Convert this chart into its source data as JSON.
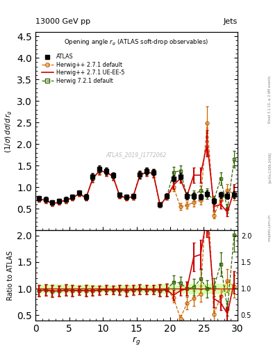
{
  "title_top": "13000 GeV pp",
  "title_right": "Jets",
  "plot_title": "Opening angle $r_g$ (ATLAS soft-drop observables)",
  "ylabel_main": "$(1/\\sigma)\\,d\\sigma/d\\,r_g$",
  "ylabel_ratio": "Ratio to ATLAS",
  "xlabel": "$r_g$",
  "watermark": "ATLAS_2019_I1772062",
  "rivet_label": "Rivet 3.1.10, ≥ 2.9M events",
  "arxiv_label": "[arXiv:1306.3436]",
  "mcplots_label": "mcplots.cern.ch",
  "x": [
    0.5,
    1.5,
    2.5,
    3.5,
    4.5,
    5.5,
    6.5,
    7.5,
    8.5,
    9.5,
    10.5,
    11.5,
    12.5,
    13.5,
    14.5,
    15.5,
    16.5,
    17.5,
    18.5,
    19.5,
    20.5,
    21.5,
    22.5,
    23.5,
    24.5,
    25.5,
    26.5,
    27.5,
    28.5,
    29.5
  ],
  "atlas_y": [
    0.75,
    0.72,
    0.65,
    0.68,
    0.72,
    0.78,
    0.88,
    0.78,
    1.25,
    1.42,
    1.38,
    1.28,
    0.82,
    0.78,
    0.8,
    1.3,
    1.38,
    1.35,
    0.6,
    0.8,
    1.2,
    1.25,
    0.8,
    0.8,
    0.78,
    0.85,
    0.68,
    0.82,
    0.8,
    0.82
  ],
  "atlas_yerr": [
    0.05,
    0.05,
    0.05,
    0.05,
    0.05,
    0.05,
    0.05,
    0.06,
    0.08,
    0.08,
    0.08,
    0.07,
    0.05,
    0.05,
    0.05,
    0.08,
    0.08,
    0.08,
    0.05,
    0.06,
    0.07,
    0.07,
    0.07,
    0.07,
    0.07,
    0.07,
    0.06,
    0.07,
    0.07,
    0.08
  ],
  "hw271_default_y": [
    0.72,
    0.7,
    0.62,
    0.65,
    0.7,
    0.75,
    0.85,
    0.75,
    1.2,
    1.38,
    1.35,
    1.25,
    0.8,
    0.75,
    0.78,
    1.28,
    1.35,
    1.32,
    0.58,
    0.78,
    1.0,
    0.55,
    0.58,
    0.65,
    0.7,
    2.48,
    0.35,
    0.7,
    0.92,
    0.85
  ],
  "hw271_default_yerr": [
    0.06,
    0.06,
    0.05,
    0.05,
    0.06,
    0.06,
    0.06,
    0.06,
    0.09,
    0.09,
    0.09,
    0.08,
    0.06,
    0.06,
    0.06,
    0.09,
    0.09,
    0.09,
    0.05,
    0.07,
    0.1,
    0.08,
    0.08,
    0.1,
    0.1,
    0.4,
    0.08,
    0.1,
    0.15,
    0.15
  ],
  "hw271_ueee5_y": [
    0.72,
    0.7,
    0.62,
    0.65,
    0.7,
    0.75,
    0.85,
    0.75,
    1.2,
    1.38,
    1.35,
    1.25,
    0.8,
    0.75,
    0.78,
    1.28,
    1.35,
    1.32,
    0.58,
    0.78,
    1.05,
    1.2,
    0.8,
    1.28,
    1.28,
    2.02,
    0.55,
    0.6,
    0.42,
    0.92
  ],
  "hw271_ueee5_yerr": [
    0.06,
    0.06,
    0.05,
    0.05,
    0.06,
    0.06,
    0.06,
    0.06,
    0.09,
    0.09,
    0.09,
    0.08,
    0.06,
    0.06,
    0.06,
    0.09,
    0.09,
    0.09,
    0.05,
    0.07,
    0.1,
    0.1,
    0.08,
    0.18,
    0.18,
    0.3,
    0.1,
    0.1,
    0.1,
    0.15
  ],
  "hw721_default_y": [
    0.72,
    0.7,
    0.62,
    0.65,
    0.7,
    0.75,
    0.85,
    0.75,
    1.2,
    1.38,
    1.35,
    1.25,
    0.8,
    0.75,
    0.78,
    1.28,
    1.35,
    1.32,
    0.58,
    0.78,
    1.35,
    1.38,
    0.8,
    0.82,
    0.92,
    0.85,
    0.7,
    1.2,
    0.5,
    1.65
  ],
  "hw721_default_yerr": [
    0.06,
    0.06,
    0.05,
    0.05,
    0.06,
    0.06,
    0.06,
    0.06,
    0.09,
    0.09,
    0.09,
    0.08,
    0.06,
    0.06,
    0.06,
    0.09,
    0.09,
    0.09,
    0.05,
    0.07,
    0.12,
    0.12,
    0.08,
    0.1,
    0.12,
    0.12,
    0.1,
    0.15,
    0.1,
    0.2
  ],
  "xlim": [
    0,
    30
  ],
  "ylim_main": [
    0.0,
    4.6
  ],
  "ylim_ratio": [
    0.4,
    2.1
  ],
  "yticks_main": [
    0.5,
    1.0,
    1.5,
    2.0,
    2.5,
    3.0,
    3.5,
    4.0,
    4.5
  ],
  "yticks_ratio": [
    0.5,
    1.0,
    1.5,
    2.0
  ],
  "xticks": [
    0,
    5,
    10,
    15,
    20,
    25,
    30
  ],
  "atlas_color": "#000000",
  "hw271_default_color": "#cc6600",
  "hw271_ueee5_color": "#cc0000",
  "hw721_default_color": "#336600",
  "band_color": "#ccff99",
  "band_alpha": 0.8
}
